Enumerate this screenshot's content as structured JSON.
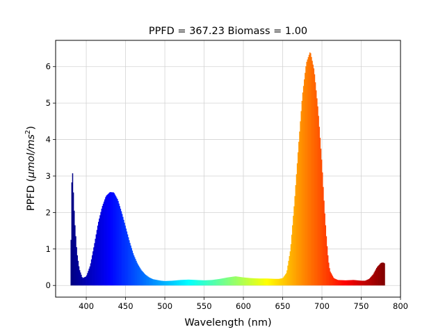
{
  "chart_data": {
    "type": "area",
    "title": "PPFD = 367.23 Biomass = 1.00",
    "xlabel": "Wavelength (nm)",
    "ylabel_prefix": "PPFD (",
    "ylabel_unit_main": "μmol/ms",
    "ylabel_unit_sup": "2",
    "ylabel_suffix": ")",
    "xlim": [
      361,
      800
    ],
    "ylim": [
      -0.32,
      6.72
    ],
    "xticks": [
      400,
      450,
      500,
      550,
      600,
      650,
      700,
      750,
      800
    ],
    "yticks": [
      0,
      1,
      2,
      3,
      4,
      5,
      6
    ],
    "grid": true,
    "colormap": "jet",
    "series": [
      {
        "x": [
          380,
          381,
          382,
          383,
          385,
          388,
          391,
          395,
          400,
          405,
          410,
          415,
          420,
          425,
          430,
          435,
          440,
          445,
          450,
          455,
          460,
          465,
          470,
          475,
          480,
          485,
          490,
          495,
          500,
          510,
          520,
          530,
          540,
          550,
          560,
          570,
          580,
          590,
          600,
          610,
          620,
          630,
          640,
          645,
          650,
          655,
          660,
          665,
          670,
          675,
          680,
          685,
          690,
          695,
          700,
          702,
          704,
          706,
          708,
          710,
          715,
          720,
          730,
          740,
          750,
          755,
          760,
          765,
          770,
          775,
          778,
          780
        ],
        "y": [
          0.2,
          2.3,
          3.35,
          2.8,
          1.8,
          0.9,
          0.45,
          0.2,
          0.25,
          0.55,
          1.1,
          1.7,
          2.15,
          2.45,
          2.56,
          2.55,
          2.35,
          2.0,
          1.6,
          1.2,
          0.85,
          0.6,
          0.42,
          0.3,
          0.22,
          0.17,
          0.15,
          0.13,
          0.12,
          0.13,
          0.15,
          0.16,
          0.15,
          0.14,
          0.15,
          0.18,
          0.22,
          0.25,
          0.22,
          0.2,
          0.19,
          0.19,
          0.18,
          0.18,
          0.2,
          0.35,
          1.0,
          2.3,
          3.8,
          5.2,
          6.1,
          6.42,
          5.9,
          4.8,
          3.3,
          2.5,
          1.8,
          1.2,
          0.7,
          0.4,
          0.2,
          0.15,
          0.14,
          0.15,
          0.13,
          0.13,
          0.18,
          0.3,
          0.5,
          0.62,
          0.63,
          0.6
        ]
      }
    ]
  }
}
